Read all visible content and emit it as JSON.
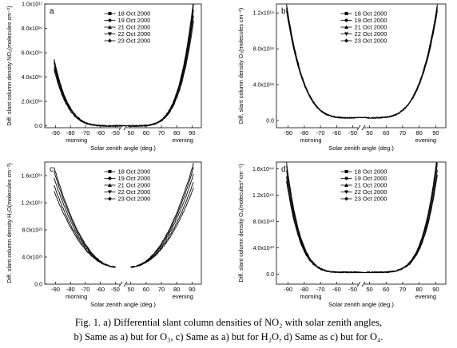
{
  "chart_data": [
    {
      "id": "a",
      "type": "line",
      "panel_label": "a",
      "ylabel": "Diff. slant column density NO₂(molecules cm⁻²)",
      "xlabel": "Solar zenith angle (deg.)",
      "morning_label": "morning",
      "evening_label": "evening",
      "ylim": [
        -1500000000000000.0,
        1e+17
      ],
      "yticks": [
        0,
        2e+16,
        4e+16,
        6e+16,
        8e+16,
        1e+17
      ],
      "ytick_labels": [
        "0.0",
        "2.0x10¹⁶",
        "4.0x10¹⁶",
        "6.0x10¹⁶",
        "8.0x10¹⁶",
        "1.0x10¹⁷"
      ],
      "xticks_morning": [
        -90,
        -80,
        -70,
        -60,
        -50
      ],
      "xtick_labels_morning": [
        "-90",
        "-80",
        "-70",
        "-60",
        "-50"
      ],
      "xticks_evening": [
        50,
        60,
        70,
        80,
        90
      ],
      "xtick_labels_evening": [
        "50",
        "60",
        "70",
        "80",
        "90"
      ],
      "legend_position": "top-center",
      "peak_evening": 8.6e+16,
      "peak_morning": 4.6e+16,
      "floor": 0.0,
      "power": 4.5,
      "morning_range": [
        -91,
        -49
      ],
      "evening_range": [
        48,
        91
      ],
      "gap": false,
      "series": [
        {
          "name": "18 Oct 2000",
          "marker": "square",
          "scale": 1.0
        },
        {
          "name": "19 Oct 2000",
          "marker": "circle",
          "scale": 0.95
        },
        {
          "name": "21 Oct 2000",
          "marker": "triangle-up",
          "scale": 1.04
        },
        {
          "name": "22 Oct 2000",
          "marker": "triangle-down",
          "scale": 0.9
        },
        {
          "name": "23 Oct 2000",
          "marker": "diamond",
          "scale": 1.08
        }
      ]
    },
    {
      "id": "b",
      "type": "line",
      "panel_label": "b",
      "ylabel": "Diff. slant column density O₃(molecules cm⁻²)",
      "xlabel": "Solar zenith angle (deg.)",
      "morning_label": "morning",
      "evening_label": "evening",
      "ylim": [
        -8e+17,
        1.3e+19
      ],
      "yticks": [
        0,
        4e+18,
        8e+18,
        1.2e+19
      ],
      "ytick_labels": [
        "0.0",
        "4.0x10¹⁸",
        "8.0x10¹⁸",
        "1.2x10¹⁹"
      ],
      "xticks_morning": [
        -90,
        -80,
        -70,
        -60,
        -50
      ],
      "xtick_labels_morning": [
        "-90",
        "-80",
        "-70",
        "-60",
        "-50"
      ],
      "xticks_evening": [
        50,
        60,
        70,
        80,
        90
      ],
      "xtick_labels_evening": [
        "50",
        "60",
        "70",
        "80",
        "90"
      ],
      "legend_position": "top-center",
      "peak_evening": 1.15e+19,
      "peak_morning": 1.15e+19,
      "floor": 3e+17,
      "power": 4.0,
      "morning_range": [
        -91,
        -49
      ],
      "evening_range": [
        48,
        91
      ],
      "gap": false,
      "series": [
        {
          "name": "18 Oct 2000",
          "marker": "square",
          "scale": 1.0
        },
        {
          "name": "19 Oct 2000",
          "marker": "circle",
          "scale": 0.97
        },
        {
          "name": "21 Oct 2000",
          "marker": "triangle-up",
          "scale": 1.03
        },
        {
          "name": "22 Oct 2000",
          "marker": "triangle-down",
          "scale": 0.98
        },
        {
          "name": "23 Oct 2000",
          "marker": "diamond",
          "scale": 1.02
        }
      ]
    },
    {
      "id": "c",
      "type": "line",
      "panel_label": "c",
      "ylabel": "Diff. slant column density H₂O(molecules cm⁻²)",
      "xlabel": "Solar zenith angle (deg.)",
      "morning_label": "morning",
      "evening_label": "evening",
      "ylim": [
        0,
        1.8e+24
      ],
      "yticks": [
        0,
        4e+23,
        8e+23,
        1.2e+24,
        1.6e+24
      ],
      "ytick_labels": [
        "0.0",
        "4.0x10²³",
        "8.0x10²³",
        "1.2x10²⁴",
        "1.6x10²⁴"
      ],
      "xticks_morning": [
        -90,
        -80,
        -70,
        -60,
        -50
      ],
      "xtick_labels_morning": [
        "-90",
        "-80",
        "-70",
        "-60",
        "-50"
      ],
      "xticks_evening": [
        50,
        60,
        70,
        80,
        90
      ],
      "xtick_labels_evening": [
        "50",
        "60",
        "70",
        "80",
        "90"
      ],
      "legend_position": "top-center",
      "peak_evening": 1.55e+24,
      "peak_morning": 1.5e+24,
      "floor": 2.5e+23,
      "power": 2.2,
      "morning_range": [
        -91,
        -50
      ],
      "evening_range": [
        50,
        91
      ],
      "gap": true,
      "series": [
        {
          "name": "18 Oct 2000",
          "marker": "square",
          "scale": 1.0
        },
        {
          "name": "19 Oct 2000",
          "marker": "circle",
          "scale": 0.93
        },
        {
          "name": "21 Oct 2000",
          "marker": "triangle-up",
          "scale": 1.06
        },
        {
          "name": "22 Oct 2000",
          "marker": "triangle-down",
          "scale": 0.88
        },
        {
          "name": "23 Oct 2000",
          "marker": "diamond",
          "scale": 1.1
        }
      ]
    },
    {
      "id": "d",
      "type": "line",
      "panel_label": "d",
      "ylabel": "Diff. slant column density O₄(molecules² cm⁻⁵)",
      "xlabel": "Solar zenith angle (deg.)",
      "morning_label": "morning",
      "evening_label": "evening",
      "ylim": [
        -1.5e+43,
        1.7e+44
      ],
      "yticks": [
        0,
        4e+43,
        8e+43,
        1.2e+44,
        1.6e+44
      ],
      "ytick_labels": [
        "0.0",
        "4.0x10⁴³",
        "8.0x10⁴³",
        "1.2x10⁴⁴",
        "1.6x10⁴⁴"
      ],
      "xticks_morning": [
        -90,
        -80,
        -70,
        -60,
        -50
      ],
      "xtick_labels_morning": [
        "-90",
        "-80",
        "-70",
        "-60",
        "-50"
      ],
      "xticks_evening": [
        50,
        60,
        70,
        80,
        90
      ],
      "xtick_labels_evening": [
        "50",
        "60",
        "70",
        "80",
        "90"
      ],
      "legend_position": "top-center",
      "peak_evening": 1.5e+44,
      "peak_morning": 1.4e+44,
      "floor": 3e+42,
      "power": 5.0,
      "morning_range": [
        -91,
        -49
      ],
      "evening_range": [
        48,
        91
      ],
      "gap": false,
      "series": [
        {
          "name": "18 Oct 2000",
          "marker": "square",
          "scale": 1.0
        },
        {
          "name": "19 Oct 2000",
          "marker": "circle",
          "scale": 0.94
        },
        {
          "name": "21 Oct 2000",
          "marker": "triangle-up",
          "scale": 1.05
        },
        {
          "name": "22 Oct 2000",
          "marker": "triangle-down",
          "scale": 0.9
        },
        {
          "name": "23 Oct 2000",
          "marker": "diamond",
          "scale": 1.08
        }
      ]
    }
  ],
  "caption": {
    "line1": "Fig. 1. a) Differential slant column densities of NO₂ with solar zenith angles,",
    "line2": "b) Same as a) but for O₃, c) Same as a) but for H₂O, d) Same as c) but for O₄."
  }
}
